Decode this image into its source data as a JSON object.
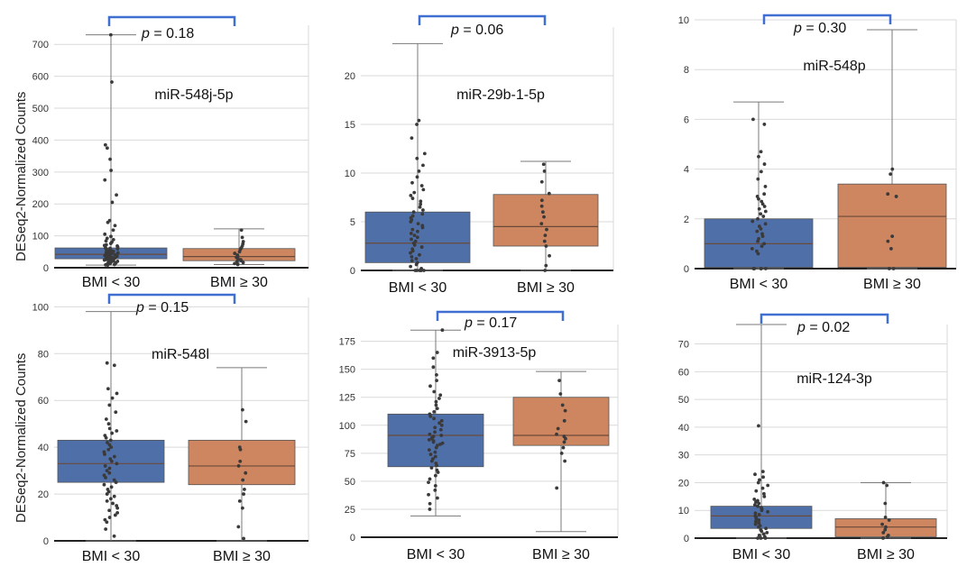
{
  "figure": {
    "ylabel": "DESeq2-Normalized Counts",
    "colors": {
      "low": "#4f6fa8",
      "high": "#cd8660",
      "bracket": "#3f6fd0",
      "grid": "#d9d9d9",
      "points": "#3a3a3a",
      "whisker": "#7a7a7a",
      "median": "#6b4a3a"
    }
  },
  "chart_data": [
    {
      "type": "box",
      "title": "miR-548j-5p",
      "p_prefix": "p",
      "p_text": " = 0.18",
      "categories": [
        "BMI < 30",
        "BMI ≥ 30"
      ],
      "yticks": [
        0,
        100,
        200,
        300,
        400,
        500,
        600,
        700
      ],
      "ytick_labels": [
        "0",
        "100",
        "200",
        "300",
        "400",
        "500",
        "600",
        "700"
      ],
      "ylim": [
        0,
        760
      ],
      "series": [
        {
          "name": "BMI < 30",
          "min": 8,
          "q1": 28,
          "median": 42,
          "q3": 62,
          "max": 730,
          "points": [
            730,
            582,
            385,
            375,
            340,
            305,
            275,
            228,
            205,
            148,
            142,
            132,
            118,
            105,
            98,
            92,
            88,
            84,
            80,
            76,
            72,
            70,
            68,
            65,
            63,
            61,
            59,
            57,
            55,
            53,
            51,
            50,
            48,
            47,
            46,
            45,
            44,
            43,
            42,
            41,
            40,
            39,
            38,
            37,
            36,
            35,
            34,
            33,
            32,
            31,
            30,
            29,
            28,
            27,
            26,
            25,
            24,
            23,
            22,
            21,
            20,
            19,
            18,
            17,
            16,
            15,
            14,
            13,
            12,
            11,
            10,
            9,
            8
          ]
        },
        {
          "name": "BMI ≥ 30",
          "min": 10,
          "q1": 22,
          "median": 35,
          "q3": 60,
          "max": 122,
          "points": [
            118,
            95,
            82,
            75,
            68,
            62,
            57,
            50,
            45,
            40,
            36,
            32,
            28,
            25,
            22,
            19,
            16,
            13,
            10
          ]
        }
      ]
    },
    {
      "type": "box",
      "title": "miR-29b-1-5p",
      "p_prefix": "p",
      "p_text": " = 0.06",
      "categories": [
        "BMI < 30",
        "BMI ≥ 30"
      ],
      "yticks": [
        0,
        5,
        10,
        15,
        20
      ],
      "ytick_labels": [
        "0",
        "5",
        "10",
        "15",
        "20"
      ],
      "ylim": [
        0,
        25
      ],
      "series": [
        {
          "name": "BMI < 30",
          "min": 0,
          "q1": 0.8,
          "median": 2.8,
          "q3": 6.0,
          "max": 23.3,
          "points": [
            15.4,
            15.0,
            13.6,
            12.0,
            11.5,
            10.8,
            10.2,
            9.6,
            9.0,
            8.7,
            8.3,
            8.0,
            7.7,
            7.4,
            7.1,
            6.8,
            6.5,
            6.2,
            6.0,
            5.8,
            5.6,
            5.4,
            5.2,
            5.0,
            4.8,
            4.6,
            4.4,
            4.2,
            4.0,
            3.8,
            3.6,
            3.4,
            3.2,
            3.0,
            2.8,
            2.6,
            2.4,
            2.2,
            2.0,
            1.8,
            1.6,
            1.4,
            1.2,
            1.0,
            0.8,
            0.6,
            0.4,
            0.2,
            0.0,
            0.0,
            0.0,
            0.0,
            0.0,
            0.0
          ]
        },
        {
          "name": "BMI ≥ 30",
          "min": 0,
          "q1": 2.5,
          "median": 4.5,
          "q3": 7.8,
          "max": 11.2,
          "points": [
            10.9,
            10.2,
            9.1,
            7.9,
            7.2,
            6.6,
            6.0,
            5.5,
            4.8,
            4.2,
            3.6,
            3.0,
            2.5,
            1.5,
            0.5,
            0.0
          ]
        }
      ]
    },
    {
      "type": "box",
      "title": "miR-548p",
      "p_prefix": "p",
      "p_text": " = 0.30",
      "categories": [
        "BMI < 30",
        "BMI ≥ 30"
      ],
      "yticks": [
        0,
        2,
        4,
        6,
        8,
        10
      ],
      "ytick_labels": [
        "0",
        "2",
        "4",
        "6",
        "8",
        "10"
      ],
      "ylim": [
        0,
        10
      ],
      "series": [
        {
          "name": "BMI < 30",
          "min": 0,
          "q1": 0.05,
          "median": 1.0,
          "q3": 2.0,
          "max": 6.7,
          "points": [
            6.0,
            5.8,
            4.7,
            4.5,
            4.2,
            3.9,
            3.6,
            3.3,
            3.0,
            2.9,
            2.8,
            2.7,
            2.6,
            2.5,
            2.4,
            2.3,
            2.2,
            2.1,
            2.0,
            1.9,
            1.8,
            1.7,
            1.6,
            1.5,
            1.4,
            1.3,
            1.2,
            1.1,
            1.0,
            0.9,
            0.8,
            0.7,
            0.6,
            0.0,
            0.0,
            0.0,
            0.0,
            0.0,
            0.0
          ]
        },
        {
          "name": "BMI ≥ 30",
          "min": 0,
          "q1": 0.05,
          "median": 2.1,
          "q3": 3.4,
          "max": 9.6,
          "points": [
            4.0,
            3.8,
            3.0,
            2.9,
            1.3,
            1.1,
            0.8,
            0.0,
            0.0
          ]
        }
      ]
    },
    {
      "type": "box",
      "title": "miR-548l",
      "p_prefix": "p",
      "p_text": " = 0.15",
      "categories": [
        "BMI < 30",
        "BMI ≥ 30"
      ],
      "yticks": [
        0,
        20,
        40,
        60,
        80,
        100
      ],
      "ytick_labels": [
        "0",
        "20",
        "40",
        "60",
        "80",
        "100"
      ],
      "ylim": [
        0,
        104
      ],
      "series": [
        {
          "name": "BMI < 30",
          "min": 0,
          "q1": 25,
          "median": 33,
          "q3": 43,
          "max": 98,
          "points": [
            76,
            75,
            65,
            63,
            61,
            58,
            55,
            52,
            50,
            48,
            47,
            46,
            45,
            44,
            43,
            42,
            41,
            40,
            39,
            38,
            37,
            36,
            35,
            34,
            33,
            32,
            31,
            30,
            29,
            28,
            27,
            26,
            25,
            24,
            23,
            22,
            21,
            20,
            19,
            18,
            17,
            16,
            15,
            14,
            13,
            12,
            11,
            10,
            9,
            8,
            5,
            2
          ]
        },
        {
          "name": "BMI ≥ 30",
          "min": 0,
          "q1": 24,
          "median": 32,
          "q3": 43,
          "max": 74,
          "points": [
            56,
            51,
            40,
            39,
            34,
            32,
            29,
            26,
            22,
            20,
            17,
            14,
            6,
            1
          ]
        }
      ]
    },
    {
      "type": "box",
      "title": "miR-3913-5p",
      "p_prefix": "p",
      "p_text": " = 0.17",
      "categories": [
        "BMI < 30",
        "BMI ≥ 30"
      ],
      "yticks": [
        0,
        25,
        50,
        75,
        100,
        125,
        150,
        175
      ],
      "ytick_labels": [
        "0",
        "25",
        "50",
        "75",
        "100",
        "125",
        "150",
        "175"
      ],
      "ylim": [
        0,
        190
      ],
      "series": [
        {
          "name": "BMI < 30",
          "min": 19,
          "q1": 63,
          "median": 91,
          "q3": 110,
          "max": 185,
          "points": [
            185,
            165,
            160,
            152,
            145,
            140,
            135,
            130,
            127,
            124,
            121,
            118,
            115,
            112,
            110,
            108,
            106,
            104,
            102,
            100,
            98,
            96,
            94,
            92,
            91,
            90,
            89,
            88,
            87,
            86,
            85,
            84,
            83,
            82,
            80,
            78,
            76,
            74,
            72,
            70,
            68,
            66,
            64,
            62,
            60,
            58,
            55,
            52,
            49,
            46,
            42,
            38,
            35,
            30,
            25
          ]
        },
        {
          "name": "BMI ≥ 30",
          "min": 5,
          "q1": 82,
          "median": 91,
          "q3": 125,
          "max": 148,
          "points": [
            140,
            128,
            118,
            113,
            104,
            97,
            92,
            90,
            88,
            85,
            80,
            75,
            68,
            44
          ]
        }
      ]
    },
    {
      "type": "box",
      "title": "miR-124-3p",
      "p_prefix": "p",
      "p_text": " = 0.02",
      "categories": [
        "BMI < 30",
        "BMI ≥ 30"
      ],
      "yticks": [
        0,
        10,
        20,
        30,
        40,
        50,
        60,
        70
      ],
      "ytick_labels": [
        "0",
        "10",
        "20",
        "30",
        "40",
        "50",
        "60",
        "70"
      ],
      "ylim": [
        0,
        77
      ],
      "series": [
        {
          "name": "BMI < 30",
          "min": 0,
          "q1": 3.5,
          "median": 8,
          "q3": 11.5,
          "max": 77,
          "points": [
            40.5,
            24,
            23,
            22,
            21,
            20,
            19,
            18,
            17,
            16,
            15,
            14,
            13.5,
            13,
            12.5,
            12,
            11.5,
            11,
            10.5,
            10,
            9.5,
            9,
            8.5,
            8,
            7.5,
            7,
            6.5,
            6,
            5.5,
            5,
            4.5,
            4,
            3.5,
            3,
            2.5,
            2,
            1.5,
            1,
            0.5,
            0,
            0,
            0
          ]
        },
        {
          "name": "BMI ≥ 30",
          "min": 0,
          "q1": 0.5,
          "median": 4,
          "q3": 7,
          "max": 20,
          "points": [
            20,
            19,
            12.5,
            7.5,
            6.5,
            5,
            4,
            3,
            2,
            1,
            0.5,
            0
          ]
        }
      ]
    }
  ]
}
